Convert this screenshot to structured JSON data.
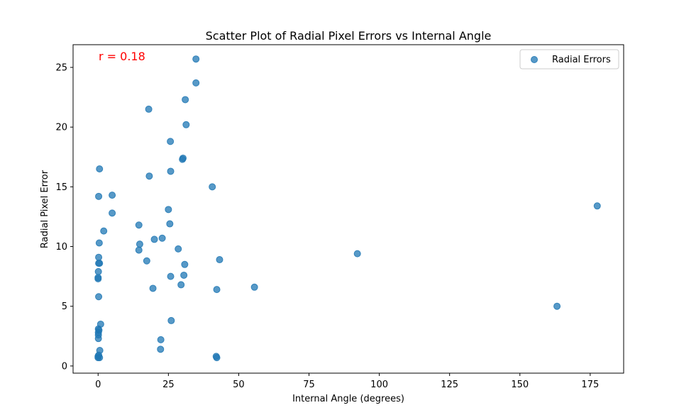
{
  "chart_data": {
    "type": "scatter",
    "title": "Scatter Plot of Radial Pixel Errors vs Internal Angle",
    "xlabel": "Internal Angle (degrees)",
    "ylabel": "Radial Pixel Error",
    "xlim": [
      -8.9,
      186.9
    ],
    "ylim": [
      -0.6,
      26.9
    ],
    "xticks": [
      0,
      25,
      50,
      75,
      100,
      125,
      150,
      175
    ],
    "yticks": [
      0,
      5,
      10,
      15,
      20,
      25
    ],
    "grid": false,
    "legend": {
      "position": "top-right",
      "entries": [
        "Radial Errors"
      ]
    },
    "annotation": {
      "text": "r = 0.18",
      "color": "#ff0000"
    },
    "series": [
      {
        "name": "Radial Errors",
        "color": "#1f77b4",
        "points": [
          [
            0.0,
            0.7
          ],
          [
            0.0,
            0.8
          ],
          [
            0.2,
            0.9
          ],
          [
            0.5,
            0.7
          ],
          [
            0.6,
            1.3
          ],
          [
            0.1,
            2.3
          ],
          [
            0.1,
            2.6
          ],
          [
            0.1,
            2.8
          ],
          [
            0.3,
            3.0
          ],
          [
            0.1,
            3.1
          ],
          [
            0.9,
            3.5
          ],
          [
            0.2,
            5.8
          ],
          [
            0.0,
            7.3
          ],
          [
            0.0,
            7.4
          ],
          [
            0.1,
            7.9
          ],
          [
            0.2,
            8.6
          ],
          [
            0.5,
            8.6
          ],
          [
            0.2,
            9.1
          ],
          [
            0.4,
            10.3
          ],
          [
            2.0,
            11.3
          ],
          [
            0.2,
            14.2
          ],
          [
            0.5,
            16.5
          ],
          [
            5.0,
            12.8
          ],
          [
            5.0,
            14.3
          ],
          [
            14.5,
            9.7
          ],
          [
            14.8,
            10.2
          ],
          [
            14.5,
            11.8
          ],
          [
            17.3,
            8.8
          ],
          [
            18.0,
            21.5
          ],
          [
            18.2,
            15.9
          ],
          [
            19.5,
            6.5
          ],
          [
            20.0,
            10.6
          ],
          [
            22.2,
            1.4
          ],
          [
            22.3,
            2.2
          ],
          [
            22.8,
            10.7
          ],
          [
            25.0,
            13.1
          ],
          [
            25.5,
            11.9
          ],
          [
            25.8,
            7.5
          ],
          [
            25.7,
            18.8
          ],
          [
            25.8,
            16.3
          ],
          [
            26.0,
            3.8
          ],
          [
            28.5,
            9.8
          ],
          [
            29.5,
            6.8
          ],
          [
            30.0,
            17.3
          ],
          [
            30.2,
            17.4
          ],
          [
            30.5,
            7.6
          ],
          [
            30.8,
            8.5
          ],
          [
            31.0,
            22.3
          ],
          [
            31.3,
            20.2
          ],
          [
            34.8,
            23.7
          ],
          [
            34.8,
            25.7
          ],
          [
            40.6,
            15.0
          ],
          [
            42.0,
            0.8
          ],
          [
            42.2,
            0.7
          ],
          [
            42.2,
            6.4
          ],
          [
            43.2,
            8.9
          ],
          [
            55.6,
            6.6
          ],
          [
            92.2,
            9.4
          ],
          [
            163.2,
            5.0
          ],
          [
            177.5,
            13.4
          ]
        ]
      }
    ]
  }
}
